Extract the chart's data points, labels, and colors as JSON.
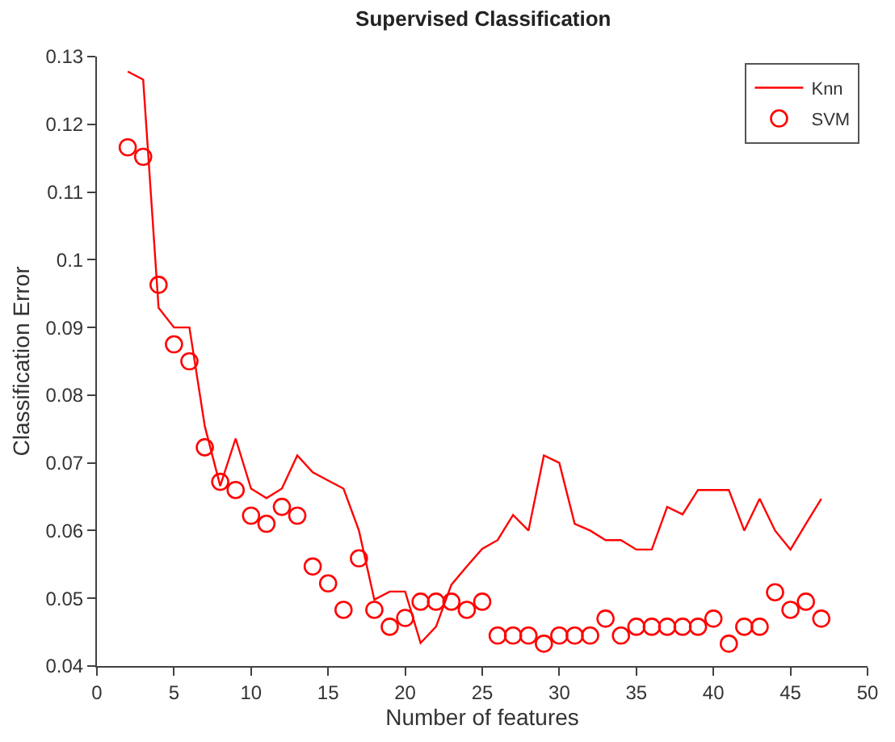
{
  "chart_data": {
    "type": "line",
    "title": "Supervised Classification",
    "xlabel": "Number of features",
    "ylabel": "Classification Error",
    "x": [
      2,
      3,
      4,
      5,
      6,
      7,
      8,
      9,
      10,
      11,
      12,
      13,
      14,
      15,
      16,
      17,
      18,
      19,
      20,
      21,
      22,
      23,
      24,
      25,
      26,
      27,
      28,
      29,
      30,
      31,
      32,
      33,
      34,
      35,
      36,
      37,
      38,
      39,
      40,
      41,
      42,
      43,
      44,
      45,
      46,
      47
    ],
    "series": [
      {
        "name": "Knn",
        "color": "#ff0000",
        "marker": "none",
        "line_style": "solid",
        "values": [
          0.1278,
          0.1266,
          0.0929,
          0.09,
          0.09,
          0.0754,
          0.0666,
          0.0736,
          0.0662,
          0.0648,
          0.0662,
          0.0711,
          0.0686,
          0.0674,
          0.0662,
          0.06,
          0.0498,
          0.051,
          0.051,
          0.0434,
          0.0458,
          0.052,
          0.0547,
          0.0573,
          0.0586,
          0.0623,
          0.06,
          0.0711,
          0.07,
          0.061,
          0.06,
          0.0586,
          0.0586,
          0.0572,
          0.0572,
          0.0635,
          0.0624,
          0.066,
          0.066,
          0.066,
          0.06,
          0.0647,
          0.06,
          0.0572,
          0.061,
          0.0647
        ]
      },
      {
        "name": "SVM",
        "type": "scatter",
        "color": "#ff0000",
        "marker": "circle",
        "values": [
          0.1166,
          0.1152,
          0.0963,
          0.0875,
          0.085,
          0.0723,
          0.0672,
          0.066,
          0.0622,
          0.061,
          0.0635,
          0.0622,
          0.0547,
          0.0522,
          0.0483,
          0.0559,
          0.0483,
          0.0458,
          0.0471,
          0.0495,
          0.0495,
          0.0495,
          0.0483,
          0.0495,
          0.0445,
          0.0445,
          0.0445,
          0.0433,
          0.0445,
          0.0445,
          0.0445,
          0.047,
          0.0445,
          0.0458,
          0.0458,
          0.0458,
          0.0458,
          0.0458,
          0.047,
          0.0433,
          0.0458,
          0.0458,
          0.0509,
          0.0483,
          0.0495,
          0.047
        ]
      }
    ],
    "xlim": [
      0,
      50
    ],
    "xticks": [
      0,
      5,
      10,
      15,
      20,
      25,
      30,
      35,
      40,
      45,
      50
    ],
    "ylim": [
      0.04,
      0.13
    ],
    "yticks": [
      0.04,
      0.05,
      0.06,
      0.07,
      0.08,
      0.09,
      0.1,
      0.11,
      0.12,
      0.13
    ],
    "legend": "top right"
  }
}
